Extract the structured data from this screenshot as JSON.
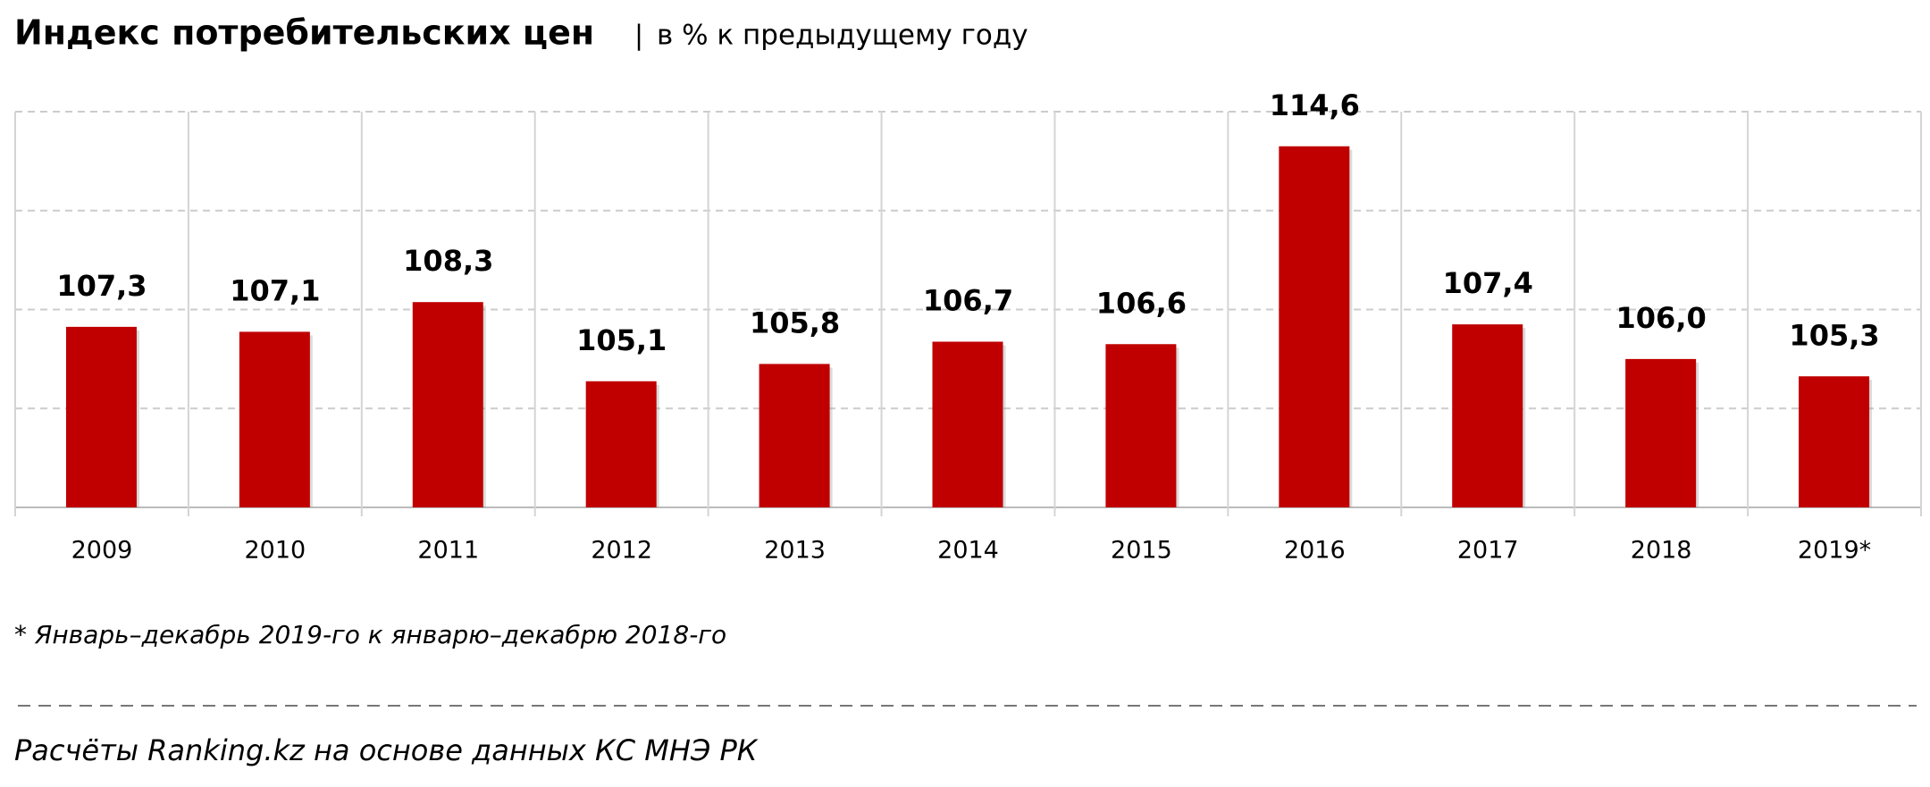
{
  "chart_data": {
    "type": "bar",
    "title": "Индекс потребительских цен",
    "subtitle": "в % к предыдущему году",
    "categories": [
      "2009",
      "2010",
      "2011",
      "2012",
      "2013",
      "2014",
      "2015",
      "2016",
      "2017",
      "2018",
      "2019*"
    ],
    "values": [
      107.3,
      107.1,
      108.3,
      105.1,
      105.8,
      106.7,
      106.6,
      114.6,
      107.4,
      106.0,
      105.3
    ],
    "value_labels": [
      "107,3",
      "107,1",
      "108,3",
      "105,1",
      "105,8",
      "106,7",
      "106,6",
      "114,6",
      "107,4",
      "106,0",
      "105,3"
    ],
    "color": "#c00000",
    "ylim": [
      100,
      116
    ],
    "yticks": [
      100,
      104,
      108,
      112,
      116
    ],
    "grid": true,
    "footnote": "* Январь–декабрь 2019-го к январю–декабрю 2018-го",
    "source": "Расчёты Ranking.kz на основе данных КС МНЭ РК"
  }
}
